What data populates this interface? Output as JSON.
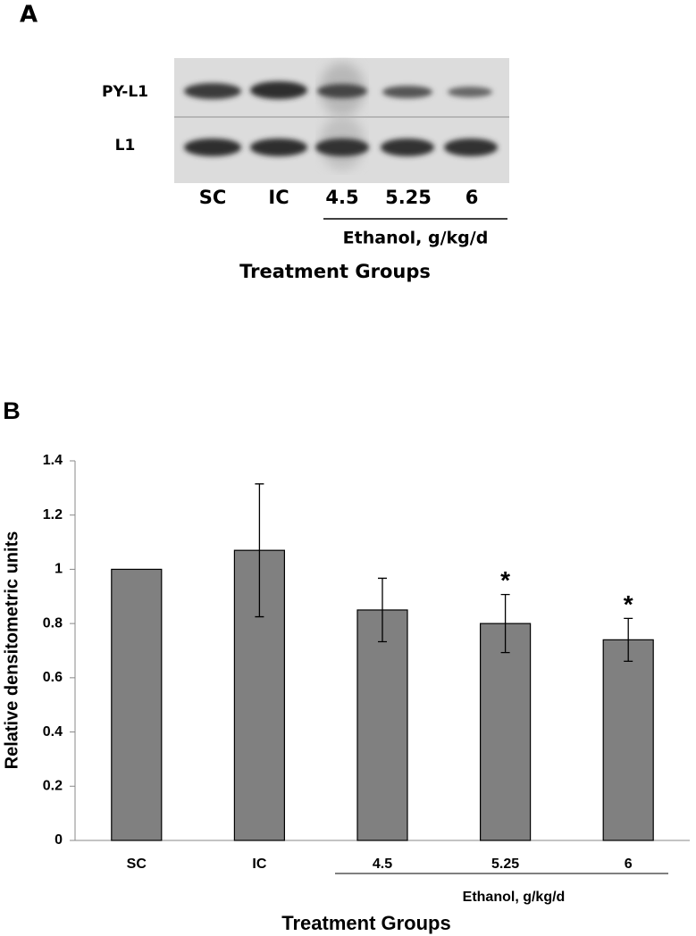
{
  "panel_a": {
    "label": "A",
    "rows": [
      "PY-L1",
      "L1"
    ],
    "lanes": [
      "SC",
      "IC",
      "4.5",
      "5.25",
      "6"
    ],
    "group_label": "Ethanol, g/kg/d",
    "xlabel": "Treatment Groups"
  },
  "chart_data": {
    "type": "bar",
    "panel_label": "B",
    "ylabel": "Relative densitometric units",
    "xlabel": "Treatment Groups",
    "group_label": "Ethanol, g/kg/d",
    "categories": [
      "SC",
      "IC",
      "4.5",
      "5.25",
      "6"
    ],
    "values": [
      1,
      1.07,
      0.85,
      0.8,
      0.74
    ],
    "errors": [
      null,
      0.245,
      0.117,
      0.107,
      0.079
    ],
    "color": "#808080",
    "ylim": [
      0,
      1.4
    ],
    "yticks": [
      0,
      0.2,
      0.4,
      0.6,
      0.8,
      1,
      1.2,
      1.4
    ],
    "annotations": [
      {
        "text": "*",
        "category": "5.25"
      },
      {
        "text": "*",
        "category": "6"
      }
    ]
  }
}
